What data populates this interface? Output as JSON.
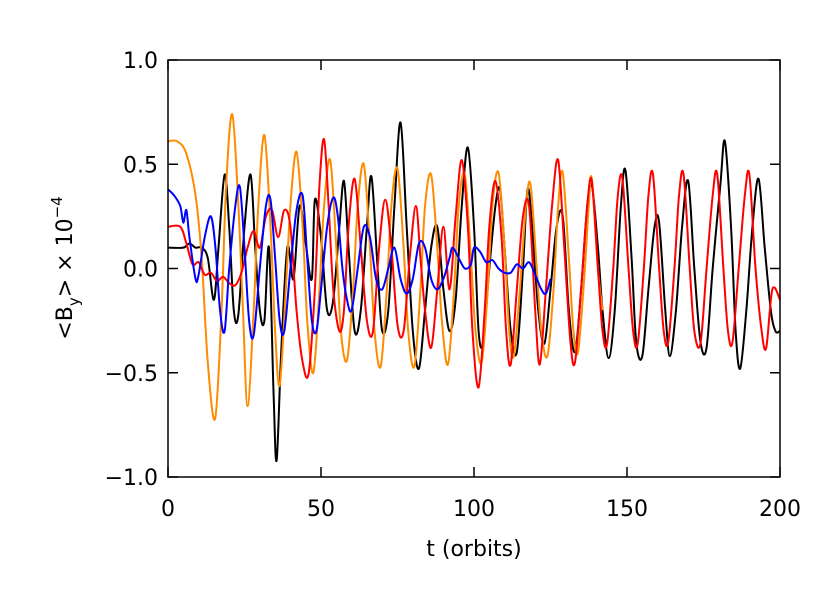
{
  "chart_data": {
    "type": "line",
    "xlabel": "t (orbits)",
    "ylabel": {
      "main": "<B",
      "sub": "y",
      "rest": "> × 10",
      "sup": "−4"
    },
    "xlim": [
      0,
      200
    ],
    "xticks": [
      0,
      50,
      100,
      150,
      200
    ],
    "ylim": [
      -1,
      1
    ],
    "yticks": [
      {
        "value": -1,
        "label": "−1.0"
      },
      {
        "value": -0.5,
        "label": "−0.5"
      },
      {
        "value": 0,
        "label": "0.0"
      },
      {
        "value": 0.5,
        "label": "0.5"
      },
      {
        "value": 1,
        "label": "1.0"
      }
    ],
    "series": [
      {
        "color": "#000000",
        "x": [
          0,
          5,
          7,
          9,
          11,
          13,
          15,
          16.5,
          18.5,
          20,
          21.5,
          23,
          25,
          27,
          28.5,
          30,
          31.5,
          33,
          34.5,
          35.5,
          37,
          39,
          41,
          43,
          45,
          47,
          48,
          50,
          52,
          54,
          56,
          57.5,
          59,
          61,
          63,
          65,
          66.5,
          68.5,
          70,
          72,
          74,
          76,
          78,
          80,
          82,
          84,
          86,
          88,
          90,
          92,
          94,
          96,
          98,
          100,
          101.5,
          103,
          105,
          107,
          108.5,
          110,
          112,
          114,
          116,
          117.5,
          119,
          121,
          123,
          125,
          127,
          129,
          131,
          133,
          135,
          137,
          138.5,
          140.5,
          142,
          144,
          146,
          148,
          149.5,
          151.5,
          153,
          155,
          157,
          159,
          160.5,
          162.5,
          164,
          166,
          168,
          170,
          172,
          174,
          176,
          178,
          180.5,
          182,
          184,
          185.5,
          187,
          189,
          191,
          193,
          195,
          197,
          198.5,
          200
        ],
        "values": [
          0.1,
          0.1,
          0.12,
          0.1,
          0.1,
          0.05,
          -0.15,
          0.1,
          0.45,
          0.2,
          -0.2,
          -0.22,
          0.2,
          0.45,
          0.1,
          -0.2,
          -0.25,
          0.1,
          -0.6,
          -0.92,
          -0.4,
          0.1,
          -0.05,
          0.3,
          0.12,
          -0.05,
          0.33,
          0.15,
          -0.2,
          -0.15,
          0.2,
          0.42,
          0.1,
          -0.3,
          -0.2,
          0.2,
          0.44,
          0,
          -0.3,
          -0.2,
          0.3,
          0.7,
          0.2,
          -0.3,
          -0.48,
          -0.2,
          0.1,
          0.2,
          -0.1,
          -0.3,
          -0.15,
          0.3,
          0.58,
          0.2,
          -0.3,
          -0.35,
          0,
          0.3,
          0.38,
          0.1,
          -0.3,
          -0.4,
          0,
          0.38,
          0.2,
          -0.2,
          -0.36,
          -0.1,
          0.2,
          0.25,
          -0.2,
          -0.4,
          -0.1,
          0.3,
          0.4,
          0.1,
          -0.2,
          -0.43,
          -0.2,
          0.3,
          0.47,
          0.05,
          -0.35,
          -0.42,
          -0.1,
          0.2,
          0.22,
          -0.2,
          -0.42,
          -0.2,
          0.2,
          0.42,
          0,
          -0.35,
          -0.38,
          0,
          0.4,
          0.61,
          0.2,
          -0.3,
          -0.48,
          -0.2,
          0.2,
          0.43,
          0.1,
          -0.2,
          -0.3,
          -0.3
        ]
      },
      {
        "color": "#ff8c00",
        "x": [
          0,
          3,
          6,
          9,
          11,
          13,
          15.4,
          17.5,
          19,
          21,
          23,
          24.5,
          26,
          28,
          29.5,
          31.5,
          33.5,
          35,
          36.5,
          38.5,
          40,
          42,
          44,
          45.5,
          47.5,
          49.5,
          51,
          53,
          55,
          56.5,
          58.5,
          60.5,
          62,
          64,
          66,
          67.5,
          69.5,
          71.5,
          73,
          75,
          77,
          78.5,
          80.5,
          82.5,
          84,
          86,
          88,
          89.5,
          91.5,
          93.5,
          95,
          97,
          99,
          100.5,
          102.5,
          104.5,
          106,
          108,
          110,
          111.5,
          113,
          115,
          117,
          118.5,
          120.5,
          122,
          124,
          126,
          127.5,
          129,
          131,
          132.5,
          134,
          136,
          137.5,
          138.5,
          140.5,
          142
        ],
        "values": [
          0.61,
          0.61,
          0.55,
          0.35,
          0.05,
          -0.45,
          -0.72,
          -0.2,
          0.4,
          0.74,
          0.3,
          -0.2,
          -0.66,
          -0.2,
          0.3,
          0.64,
          0.2,
          -0.3,
          -0.56,
          -0.1,
          0.3,
          0.56,
          0.2,
          -0.25,
          -0.5,
          -0.1,
          0.3,
          0.52,
          0.1,
          -0.3,
          -0.44,
          -0.1,
          0.3,
          0.5,
          0.1,
          -0.3,
          -0.47,
          -0.1,
          0.3,
          0.48,
          0.1,
          -0.3,
          -0.47,
          -0.1,
          0.3,
          0.45,
          0.1,
          -0.25,
          -0.46,
          -0.1,
          0.3,
          0.45,
          0.05,
          -0.3,
          -0.45,
          -0.1,
          0.3,
          0.46,
          0.1,
          -0.3,
          -0.42,
          -0.1,
          0.3,
          0.4,
          0,
          -0.3,
          -0.42,
          -0.1,
          0.3,
          0.46,
          0.05,
          -0.3,
          -0.4,
          -0.05,
          0.3,
          0.43,
          0,
          -0.2
        ]
      },
      {
        "color": "#ff0000",
        "x": [
          0,
          4,
          6,
          8,
          10,
          12,
          14,
          16,
          18,
          20,
          22,
          24,
          26,
          28,
          30,
          32,
          34,
          36,
          38,
          40,
          42,
          44,
          46,
          48,
          49.5,
          51,
          52.5,
          54,
          56,
          57.5,
          59,
          61,
          63,
          65,
          67,
          69,
          71,
          73,
          75,
          77,
          79,
          81,
          82.5,
          84,
          86,
          88,
          90,
          92,
          94,
          96,
          98,
          99.5,
          101.5,
          103.5,
          105,
          107,
          109,
          110.5,
          112,
          114,
          116,
          118,
          120,
          121.5,
          123.5,
          125.5,
          127.5,
          129.5,
          131.5,
          133,
          135,
          137,
          138.5,
          140.5,
          142,
          143.5,
          145.5,
          147,
          148.5,
          150.5,
          152,
          153.5,
          155.5,
          157,
          158.5,
          160.5,
          162,
          163.5,
          165.5,
          167,
          168.5,
          170.5,
          172,
          174,
          176,
          178,
          179.5,
          181.5,
          183,
          184.5,
          186.5,
          188.5,
          190,
          192,
          194,
          195.5,
          197.5,
          200
        ],
        "values": [
          0.2,
          0.2,
          0.12,
          0.02,
          0.03,
          -0.03,
          -0.02,
          -0.06,
          -0.04,
          -0.07,
          -0.08,
          -0.02,
          0.1,
          0.18,
          0.1,
          0.25,
          0.28,
          0.15,
          0.28,
          0.2,
          -0.2,
          -0.45,
          -0.5,
          -0.1,
          0.4,
          0.62,
          0.3,
          -0.1,
          -0.3,
          -0.2,
          0.2,
          0.43,
          0.1,
          -0.25,
          -0.3,
          0.1,
          0.33,
          0.1,
          -0.27,
          -0.3,
          0.05,
          0.3,
          0.05,
          -0.2,
          -0.38,
          -0.1,
          0.2,
          -0.1,
          0.25,
          0.52,
          0.2,
          -0.3,
          -0.57,
          -0.2,
          0.2,
          0.42,
          0.15,
          -0.3,
          -0.46,
          -0.1,
          0.25,
          0.3,
          -0.2,
          -0.46,
          -0.1,
          0.3,
          0.52,
          0.1,
          -0.35,
          -0.45,
          -0.1,
          0.3,
          0.42,
          0,
          -0.3,
          -0.36,
          0,
          0.35,
          0.43,
          0,
          -0.3,
          -0.36,
          0,
          0.35,
          0.45,
          0,
          -0.3,
          -0.35,
          0,
          0.35,
          0.45,
          0,
          -0.3,
          -0.36,
          0,
          0.35,
          0.45,
          0,
          -0.3,
          -0.35,
          0,
          0.35,
          0.45,
          0,
          -0.3,
          -0.38,
          -0.1,
          -0.15
        ]
      },
      {
        "color": "#0000ff",
        "x": [
          0,
          2,
          4,
          5,
          6,
          7,
          9,
          10,
          12,
          14,
          15.5,
          17,
          18.5,
          20,
          22,
          23.5,
          25,
          26.5,
          28,
          30,
          32,
          33.5,
          35,
          36.5,
          38,
          40,
          42,
          44,
          45.5,
          47,
          48.5,
          50,
          52,
          54,
          55.5,
          57,
          58.5,
          60,
          62,
          64,
          66,
          68,
          70,
          72,
          74,
          76,
          78,
          80,
          82,
          84,
          86,
          88,
          90,
          92,
          93,
          95,
          97,
          99,
          100,
          102,
          104,
          106,
          108,
          110,
          112,
          114,
          116,
          118,
          120,
          122,
          123.5,
          125
        ],
        "values": [
          0.38,
          0.35,
          0.3,
          0.22,
          0.28,
          0.15,
          -0.05,
          -0.03,
          0.15,
          0.25,
          0.1,
          -0.2,
          -0.3,
          0,
          0.3,
          0.39,
          0.1,
          -0.25,
          -0.32,
          0,
          0.3,
          0.33,
          0.05,
          -0.25,
          -0.3,
          0,
          0.28,
          0.35,
          0.05,
          -0.25,
          -0.3,
          -0.1,
          0.2,
          0.34,
          0.25,
          0,
          -0.15,
          -0.2,
          0,
          0.2,
          0.15,
          -0.05,
          -0.1,
          0,
          0.1,
          -0.05,
          -0.12,
          -0.05,
          0.12,
          0.1,
          -0.05,
          -0.1,
          -0.05,
          0.05,
          0.1,
          0.05,
          0,
          0.02,
          0.1,
          0.08,
          0.03,
          0.04,
          0,
          -0.02,
          -0.02,
          0.02,
          0,
          0.03,
          -0.03,
          -0.1,
          -0.12,
          -0.05
        ]
      }
    ]
  }
}
